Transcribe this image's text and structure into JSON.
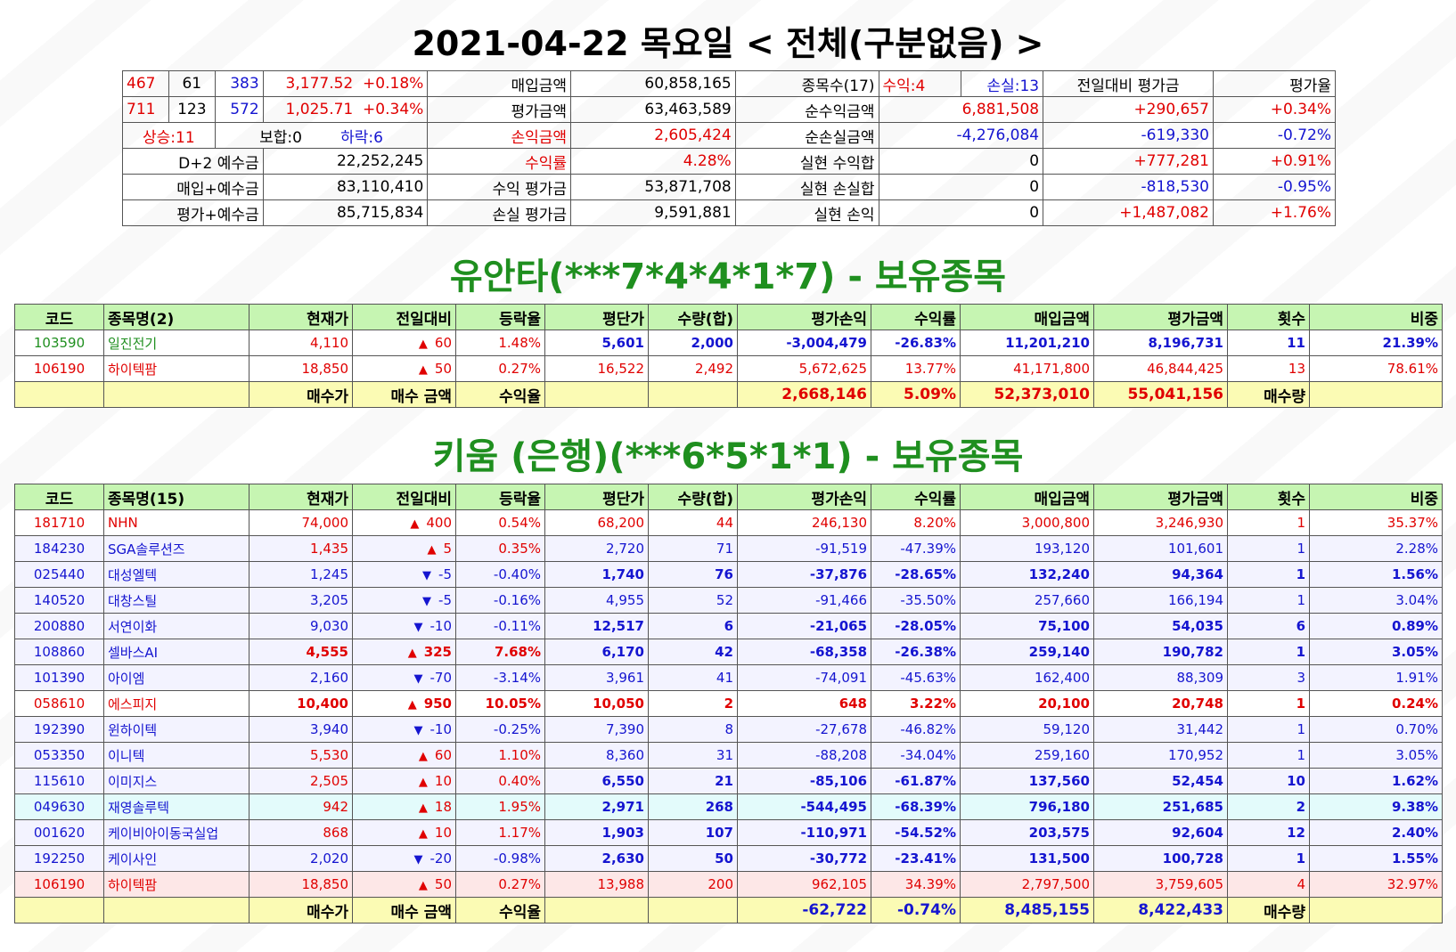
{
  "main_title": "2021-04-22 목요일 < 전체(구분없음) >",
  "summary": {
    "r1": {
      "a": "467",
      "b": "61",
      "c": "383",
      "d": "3,177.52",
      "e": "+0.18%",
      "f": "매입금액",
      "g": "60,858,165",
      "h": "종목수(17)",
      "i": "수익:4",
      "j": "손실:13",
      "k": "전일대비 평가금",
      "l": "평가율"
    },
    "r2": {
      "a": "711",
      "b": "123",
      "c": "572",
      "d": "1,025.71",
      "e": "+0.34%",
      "f": "평가금액",
      "g": "63,463,589",
      "h": "순수익금액",
      "i": "6,881,508",
      "k": "+290,657",
      "l": "+0.34%"
    },
    "r3": {
      "a": "상승:11",
      "b": "보합:0",
      "c": "하락:6",
      "f": "손익금액",
      "g": "2,605,424",
      "h": "순손실금액",
      "i": "-4,276,084",
      "k": "-619,330",
      "l": "-0.72%"
    },
    "r4": {
      "a": "D+2 예수금",
      "d": "22,252,245",
      "f": "수익률",
      "g": "4.28%",
      "h": "실현 수익합",
      "i": "0",
      "k": "+777,281",
      "l": "+0.91%"
    },
    "r5": {
      "a": "매입+예수금",
      "d": "83,110,410",
      "f": "수익 평가금",
      "g": "53,871,708",
      "h": "실현 손실합",
      "i": "0",
      "k": "-818,530",
      "l": "-0.95%"
    },
    "r6": {
      "a": "평가+예수금",
      "d": "85,715,834",
      "f": "손실 평가금",
      "g": "9,591,881",
      "h": "실현 손익",
      "i": "0",
      "k": "+1,487,082",
      "l": "+1.76%"
    }
  },
  "yuanta": {
    "title": "유안타(***7*4*4*1*7) - 보유종목",
    "headers": [
      "코드",
      "종목명(2)",
      "현재가",
      "전일대비",
      "등락율",
      "평단가",
      "수량(합)",
      "평가손익",
      "수익률",
      "매입금액",
      "평가금액",
      "횟수",
      "비중"
    ],
    "rows": [
      [
        "103590",
        "일진전기",
        "4,110",
        "60",
        "1.48%",
        "5,601",
        "2,000",
        "-3,004,479",
        "-26.83%",
        "11,201,210",
        "8,196,731",
        "11",
        "21.39%"
      ],
      [
        "106190",
        "하이텍팜",
        "18,850",
        "50",
        "0.27%",
        "16,522",
        "2,492",
        "5,672,625",
        "13.77%",
        "41,171,800",
        "46,844,425",
        "13",
        "78.61%"
      ]
    ],
    "total": {
      "buy_price": "매수가",
      "buy_amount": "매수 금액",
      "yield_label": "수익율",
      "pl": "2,668,146",
      "yield": "5.09%",
      "buy_total": "52,373,010",
      "eval_total": "55,041,156",
      "qty_label": "매수량"
    }
  },
  "kiwoom": {
    "title": "키움 (은행)(***6*5*1*1) - 보유종목",
    "headers": [
      "코드",
      "종목명(15)",
      "현재가",
      "전일대비",
      "등락율",
      "평단가",
      "수량(합)",
      "평가손익",
      "수익률",
      "매입금액",
      "평가금액",
      "횟수",
      "비중"
    ],
    "rows": [
      [
        "181710",
        "NHN",
        "74,000",
        "400",
        "0.54%",
        "68,200",
        "44",
        "246,130",
        "8.20%",
        "3,000,800",
        "3,246,930",
        "1",
        "35.37%"
      ],
      [
        "184230",
        "SGA솔루션즈",
        "1,435",
        "5",
        "0.35%",
        "2,720",
        "71",
        "-91,519",
        "-47.39%",
        "193,120",
        "101,601",
        "1",
        "2.28%"
      ],
      [
        "025440",
        "대성엘텍",
        "1,245",
        "-5",
        "-0.40%",
        "1,740",
        "76",
        "-37,876",
        "-28.65%",
        "132,240",
        "94,364",
        "1",
        "1.56%"
      ],
      [
        "140520",
        "대창스틸",
        "3,205",
        "-5",
        "-0.16%",
        "4,955",
        "52",
        "-91,466",
        "-35.50%",
        "257,660",
        "166,194",
        "1",
        "3.04%"
      ],
      [
        "200880",
        "서연이화",
        "9,030",
        "-10",
        "-0.11%",
        "12,517",
        "6",
        "-21,065",
        "-28.05%",
        "75,100",
        "54,035",
        "6",
        "0.89%"
      ],
      [
        "108860",
        "셀바스AI",
        "4,555",
        "325",
        "7.68%",
        "6,170",
        "42",
        "-68,358",
        "-26.38%",
        "259,140",
        "190,782",
        "1",
        "3.05%"
      ],
      [
        "101390",
        "아이엠",
        "2,160",
        "-70",
        "-3.14%",
        "3,961",
        "41",
        "-74,091",
        "-45.63%",
        "162,400",
        "88,309",
        "3",
        "1.91%"
      ],
      [
        "058610",
        "에스피지",
        "10,400",
        "950",
        "10.05%",
        "10,050",
        "2",
        "648",
        "3.22%",
        "20,100",
        "20,748",
        "1",
        "0.24%"
      ],
      [
        "192390",
        "윈하이텍",
        "3,940",
        "-10",
        "-0.25%",
        "7,390",
        "8",
        "-27,678",
        "-46.82%",
        "59,120",
        "31,442",
        "1",
        "0.70%"
      ],
      [
        "053350",
        "이니텍",
        "5,530",
        "60",
        "1.10%",
        "8,360",
        "31",
        "-88,208",
        "-34.04%",
        "259,160",
        "170,952",
        "1",
        "3.05%"
      ],
      [
        "115610",
        "이미지스",
        "2,505",
        "10",
        "0.40%",
        "6,550",
        "21",
        "-85,106",
        "-61.87%",
        "137,560",
        "52,454",
        "10",
        "1.62%"
      ],
      [
        "049630",
        "재영솔루텍",
        "942",
        "18",
        "1.95%",
        "2,971",
        "268",
        "-544,495",
        "-68.39%",
        "796,180",
        "251,685",
        "2",
        "9.38%"
      ],
      [
        "001620",
        "케이비아이동국실업",
        "868",
        "10",
        "1.17%",
        "1,903",
        "107",
        "-110,971",
        "-54.52%",
        "203,575",
        "92,604",
        "12",
        "2.40%"
      ],
      [
        "192250",
        "케이사인",
        "2,020",
        "-20",
        "-0.98%",
        "2,630",
        "50",
        "-30,772",
        "-23.41%",
        "131,500",
        "100,728",
        "1",
        "1.55%"
      ],
      [
        "106190",
        "하이텍팜",
        "18,850",
        "50",
        "0.27%",
        "13,988",
        "200",
        "962,105",
        "34.39%",
        "2,797,500",
        "3,759,605",
        "4",
        "32.97%"
      ]
    ],
    "total": {
      "buy_price": "매수가",
      "buy_amount": "매수 금액",
      "yield_label": "수익율",
      "pl": "-62,722",
      "yield": "-0.74%",
      "buy_total": "8,485,155",
      "eval_total": "8,422,433",
      "qty_label": "매수량"
    }
  }
}
